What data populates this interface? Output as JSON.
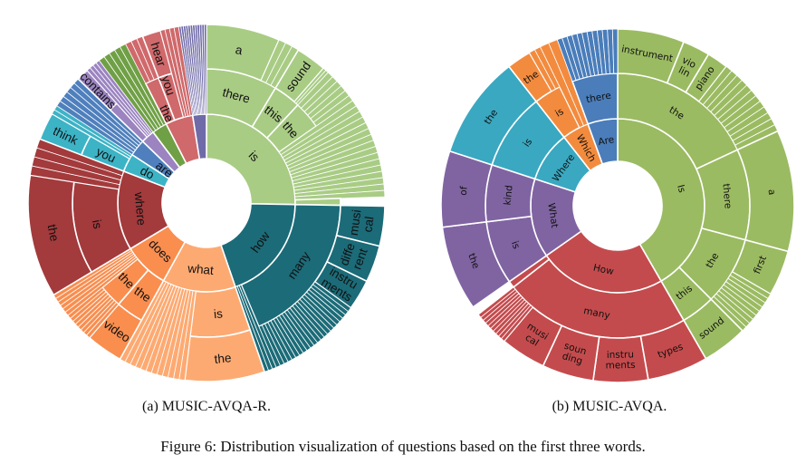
{
  "captions": {
    "a": "(a) MUSIC-AVQA-R.",
    "b": "(b) MUSIC-AVQA.",
    "figure": "Figure 6: Distribution visualization of questions based on the first three words."
  },
  "chart_data": [
    {
      "type": "sunburst",
      "title": "MUSIC-AVQA-R",
      "value_unit": "relative share (normalized)",
      "nodes": [
        {
          "l": "is",
          "color": "#a9cc85",
          "v": 91,
          "c": [
            {
              "l": "there",
              "v": 31,
              "c": [
                {
                  "l": "a",
                  "v": 24
                },
                {
                  "v": 7,
                  "split": 3
                }
              ]
            },
            {
              "l": "this",
              "v": 12,
              "c": [
                {
                  "l": "sound",
                  "v": 10
                },
                {
                  "v": 2,
                  "split": 2
                }
              ]
            },
            {
              "l": "the",
              "v": 12,
              "c": [
                {
                  "v": 12,
                  "split": 6
                }
              ]
            },
            {
              "v": 33,
              "split": 16
            },
            {
              "v": 3
            }
          ]
        },
        {
          "l": "how",
          "color": "#1c6b78",
          "v": 70,
          "c": [
            {
              "l": "many",
              "v": 66,
              "c": [
                {
                  "l": "musical",
                  "v": 13
                },
                {
                  "l": "different",
                  "v": 12
                },
                {
                  "l": "instruments",
                  "v": 10
                },
                {
                  "v": 31,
                  "split": 22
                }
              ]
            },
            {
              "v": 4,
              "split": 3
            }
          ]
        },
        {
          "l": "what",
          "color": "#fdaa72",
          "v": 48,
          "c": [
            {
              "l": "is",
              "v": 26,
              "c": [
                {
                  "l": "the",
                  "v": 26
                }
              ]
            },
            {
              "v": 22,
              "split": 12
            }
          ]
        },
        {
          "l": "does",
          "color": "#f98e4f",
          "v": 30,
          "c": [
            {
              "l": "the",
              "v": 12,
              "c": [
                {
                  "l": "video",
                  "v": 12
                }
              ]
            },
            {
              "l": "the",
              "v": 10,
              "c": [
                {
                  "v": 10,
                  "split": 8
                }
              ]
            },
            {
              "v": 8,
              "split": 6
            }
          ]
        },
        {
          "l": "where",
          "color": "#a33a3c",
          "v": 52,
          "c": [
            {
              "l": "is",
              "v": 40,
              "c": [
                {
                  "l": "the",
                  "v": 40
                }
              ]
            },
            {
              "v": 12,
              "split": 4
            }
          ]
        },
        {
          "l": "do",
          "color": "#3db3c6",
          "v": 12,
          "c": [
            {
              "l": "you",
              "v": 9,
              "c": [
                {
                  "l": "think",
                  "v": 9
                }
              ]
            },
            {
              "v": 3,
              "split": 2
            }
          ]
        },
        {
          "l": "are",
          "color": "#4f80bd",
          "v": 11,
          "c": [
            {
              "v": 11,
              "split": 6
            }
          ]
        },
        {
          "color": "#9b84c0",
          "v": 9,
          "c": [
            {
              "v": 4,
              "c": [
                {
                  "l": "contains",
                  "v": 4
                }
              ]
            },
            {
              "v": 5,
              "split": 4
            }
          ]
        },
        {
          "color": "#70a046",
          "v": 10,
          "c": [
            {
              "v": 10,
              "split": 5
            }
          ]
        },
        {
          "color": "#d0696b",
          "v": 18,
          "c": [
            {
              "l": "the",
              "v": 6,
              "c": [
                {
                  "v": 6,
                  "split": 3
                }
              ]
            },
            {
              "l": "you",
              "v": 6,
              "c": [
                {
                  "l": "hear",
                  "v": 6
                }
              ]
            },
            {
              "v": 6,
              "split": 4
            }
          ]
        },
        {
          "color": "#6f6aa8",
          "v": 9,
          "c": [
            {
              "v": 9,
              "split": 12
            }
          ]
        }
      ]
    },
    {
      "type": "sunburst",
      "title": "MUSIC-AVQA",
      "value_unit": "relative share (normalized)",
      "nodes": [
        {
          "l": "Is",
          "color": "#9bbb62",
          "v": 150,
          "c": [
            {
              "l": "the",
              "v": 65,
              "c": [
                {
                  "l": "instrument",
                  "v": 22
                },
                {
                  "l": "violin",
                  "v": 9
                },
                {
                  "l": "piano",
                  "v": 7
                },
                {
                  "v": 27,
                  "split": 12
                }
              ]
            },
            {
              "l": "there",
              "v": 40,
              "c": [
                {
                  "l": "a",
                  "v": 40
                }
              ]
            },
            {
              "l": "the",
              "v": 30,
              "c": [
                {
                  "l": "first",
                  "v": 15
                },
                {
                  "v": 15,
                  "split": 9
                }
              ]
            },
            {
              "l": "this",
              "v": 15,
              "c": [
                {
                  "l": "sound",
                  "v": 15
                }
              ]
            }
          ]
        },
        {
          "l": "How",
          "color": "#c44b4d",
          "v": 85,
          "c": [
            {
              "l": "many",
              "v": 82,
              "c": [
                {
                  "l": "types",
                  "v": 20
                },
                {
                  "l": "instruments",
                  "v": 18
                },
                {
                  "l": "sounding",
                  "v": 17
                },
                {
                  "l": "musical",
                  "v": 15
                },
                {
                  "v": 12,
                  "split": 10
                }
              ]
            },
            {
              "v": 3
            }
          ]
        },
        {
          "l": "What",
          "color": "#8064a2",
          "v": 53,
          "c": [
            {
              "l": "is",
              "v": 28,
              "c": [
                {
                  "l": "the",
                  "v": 28
                }
              ]
            },
            {
              "l": "kind",
              "v": 25,
              "c": [
                {
                  "l": "of",
                  "v": 25
                }
              ]
            }
          ]
        },
        {
          "l": "Where",
          "color": "#3aa8c1",
          "v": 34,
          "c": [
            {
              "l": "is",
              "v": 34,
              "c": [
                {
                  "l": "the",
                  "v": 34
                }
              ]
            }
          ]
        },
        {
          "l": "Which",
          "color": "#f38b3e",
          "v": 18,
          "c": [
            {
              "l": "is",
              "v": 12,
              "c": [
                {
                  "l": "the",
                  "v": 8
                },
                {
                  "v": 4,
                  "split": 2
                }
              ]
            },
            {
              "v": 6,
              "split": 2
            }
          ]
        },
        {
          "l": "Are",
          "color": "#4a7dba",
          "v": 20,
          "c": [
            {
              "l": "there",
              "v": 20,
              "c": [
                {
                  "v": 20,
                  "split": 12
                }
              ]
            }
          ]
        }
      ]
    }
  ]
}
